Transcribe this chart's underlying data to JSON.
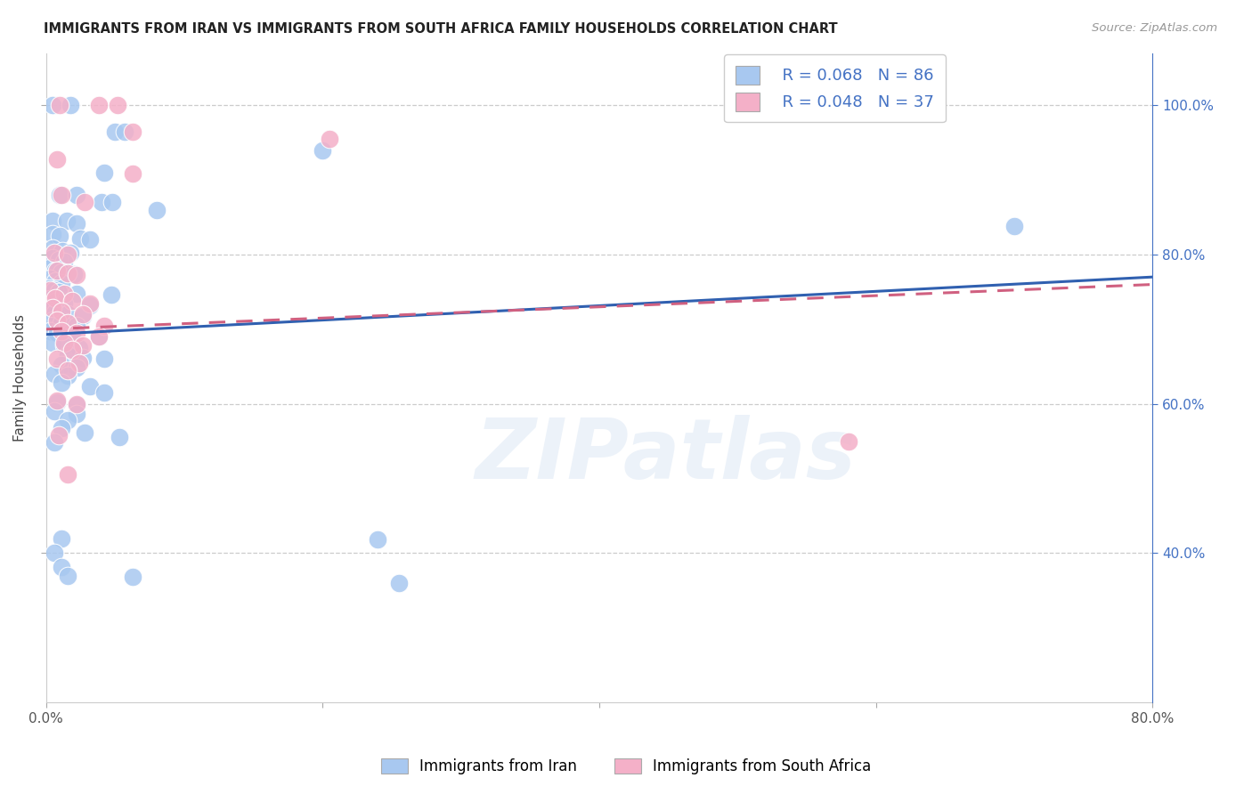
{
  "title": "IMMIGRANTS FROM IRAN VS IMMIGRANTS FROM SOUTH AFRICA FAMILY HOUSEHOLDS CORRELATION CHART",
  "source": "Source: ZipAtlas.com",
  "ylabel": "Family Households",
  "xlim": [
    0.0,
    0.8
  ],
  "ylim": [
    0.2,
    1.07
  ],
  "xtick_positions": [
    0.0,
    0.2,
    0.4,
    0.6,
    0.8
  ],
  "xtick_labels": [
    "0.0%",
    "",
    "",
    "",
    "80.0%"
  ],
  "ytick_positions": [
    0.4,
    0.6,
    0.8,
    1.0
  ],
  "ytick_labels_right": [
    "40.0%",
    "60.0%",
    "80.0%",
    "100.0%"
  ],
  "legend_iran_R": "R = 0.068",
  "legend_iran_N": "N = 86",
  "legend_sa_R": "R = 0.048",
  "legend_sa_N": "N = 37",
  "watermark": "ZIPatlas",
  "blue_color": "#a8c8f0",
  "pink_color": "#f4b0c8",
  "blue_line_color": "#3060b0",
  "pink_line_color": "#d06080",
  "blue_line_x0": 0.0,
  "blue_line_y0": 0.693,
  "blue_line_x1": 0.8,
  "blue_line_y1": 0.77,
  "pink_line_x0": 0.0,
  "pink_line_y0": 0.7,
  "pink_line_x1": 0.8,
  "pink_line_y1": 0.76,
  "iran_points": [
    [
      0.005,
      1.0
    ],
    [
      0.018,
      1.0
    ],
    [
      0.05,
      0.965
    ],
    [
      0.057,
      0.965
    ],
    [
      0.042,
      0.91
    ],
    [
      0.2,
      0.94
    ],
    [
      0.01,
      0.88
    ],
    [
      0.022,
      0.88
    ],
    [
      0.04,
      0.87
    ],
    [
      0.048,
      0.87
    ],
    [
      0.08,
      0.86
    ],
    [
      0.005,
      0.845
    ],
    [
      0.015,
      0.845
    ],
    [
      0.022,
      0.842
    ],
    [
      0.005,
      0.828
    ],
    [
      0.01,
      0.825
    ],
    [
      0.025,
      0.822
    ],
    [
      0.032,
      0.82
    ],
    [
      0.005,
      0.808
    ],
    [
      0.012,
      0.805
    ],
    [
      0.018,
      0.802
    ],
    [
      0.005,
      0.795
    ],
    [
      0.009,
      0.793
    ],
    [
      0.013,
      0.79
    ],
    [
      0.003,
      0.782
    ],
    [
      0.007,
      0.778
    ],
    [
      0.011,
      0.776
    ],
    [
      0.02,
      0.774
    ],
    [
      0.003,
      0.768
    ],
    [
      0.007,
      0.764
    ],
    [
      0.011,
      0.762
    ],
    [
      0.002,
      0.755
    ],
    [
      0.006,
      0.752
    ],
    [
      0.009,
      0.75
    ],
    [
      0.022,
      0.748
    ],
    [
      0.047,
      0.746
    ],
    [
      0.003,
      0.74
    ],
    [
      0.007,
      0.737
    ],
    [
      0.013,
      0.734
    ],
    [
      0.032,
      0.732
    ],
    [
      0.003,
      0.725
    ],
    [
      0.007,
      0.722
    ],
    [
      0.016,
      0.72
    ],
    [
      0.027,
      0.718
    ],
    [
      0.005,
      0.712
    ],
    [
      0.011,
      0.708
    ],
    [
      0.022,
      0.705
    ],
    [
      0.003,
      0.698
    ],
    [
      0.008,
      0.695
    ],
    [
      0.019,
      0.692
    ],
    [
      0.038,
      0.69
    ],
    [
      0.005,
      0.682
    ],
    [
      0.013,
      0.678
    ],
    [
      0.024,
      0.675
    ],
    [
      0.016,
      0.665
    ],
    [
      0.027,
      0.662
    ],
    [
      0.042,
      0.66
    ],
    [
      0.011,
      0.652
    ],
    [
      0.022,
      0.648
    ],
    [
      0.006,
      0.64
    ],
    [
      0.016,
      0.638
    ],
    [
      0.011,
      0.628
    ],
    [
      0.032,
      0.624
    ],
    [
      0.042,
      0.615
    ],
    [
      0.008,
      0.602
    ],
    [
      0.022,
      0.598
    ],
    [
      0.006,
      0.59
    ],
    [
      0.022,
      0.586
    ],
    [
      0.016,
      0.578
    ],
    [
      0.011,
      0.568
    ],
    [
      0.028,
      0.562
    ],
    [
      0.053,
      0.555
    ],
    [
      0.006,
      0.548
    ],
    [
      0.011,
      0.42
    ],
    [
      0.24,
      0.418
    ],
    [
      0.006,
      0.4
    ],
    [
      0.011,
      0.382
    ],
    [
      0.016,
      0.37
    ],
    [
      0.063,
      0.368
    ],
    [
      0.255,
      0.36
    ],
    [
      0.7,
      0.838
    ]
  ],
  "sa_points": [
    [
      0.01,
      1.0
    ],
    [
      0.038,
      1.0
    ],
    [
      0.052,
      1.0
    ],
    [
      0.063,
      0.965
    ],
    [
      0.205,
      0.955
    ],
    [
      0.063,
      0.908
    ],
    [
      0.008,
      0.928
    ],
    [
      0.011,
      0.88
    ],
    [
      0.028,
      0.87
    ],
    [
      0.006,
      0.802
    ],
    [
      0.016,
      0.8
    ],
    [
      0.008,
      0.778
    ],
    [
      0.016,
      0.775
    ],
    [
      0.022,
      0.772
    ],
    [
      0.003,
      0.752
    ],
    [
      0.013,
      0.748
    ],
    [
      0.007,
      0.742
    ],
    [
      0.019,
      0.738
    ],
    [
      0.032,
      0.735
    ],
    [
      0.005,
      0.728
    ],
    [
      0.011,
      0.724
    ],
    [
      0.027,
      0.72
    ],
    [
      0.008,
      0.712
    ],
    [
      0.016,
      0.708
    ],
    [
      0.042,
      0.705
    ],
    [
      0.011,
      0.698
    ],
    [
      0.022,
      0.695
    ],
    [
      0.038,
      0.69
    ],
    [
      0.013,
      0.682
    ],
    [
      0.027,
      0.678
    ],
    [
      0.019,
      0.672
    ],
    [
      0.008,
      0.66
    ],
    [
      0.024,
      0.655
    ],
    [
      0.016,
      0.645
    ],
    [
      0.008,
      0.605
    ],
    [
      0.022,
      0.6
    ],
    [
      0.009,
      0.558
    ],
    [
      0.016,
      0.505
    ],
    [
      0.58,
      0.55
    ]
  ]
}
